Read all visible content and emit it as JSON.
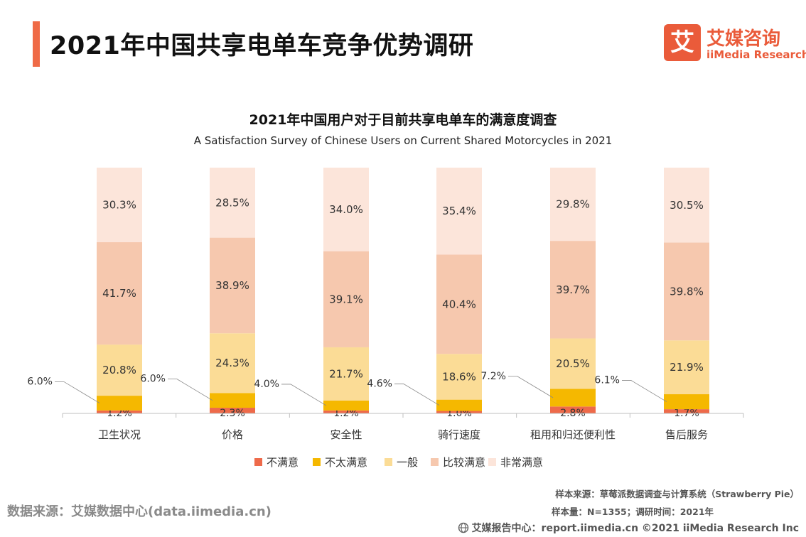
{
  "header": {
    "title": "2021年中国共享电单车竞争优势调研",
    "logo_mark": "艾",
    "logo_cn": "艾媒咨询",
    "logo_en": "iiMedia Research"
  },
  "footer": {
    "source": "数据来源：艾媒数据中心(data.iimedia.cn)",
    "sample_source": "样本来源：草莓派数据调查与计算系统（Strawberry Pie）",
    "sample_size": "样本量：N=1355；调研时间：2021年",
    "copyright": "艾媒报告中心：report.iimedia.cn  ©2021  iiMedia Research  Inc"
  },
  "chart_data": {
    "type": "bar",
    "stacked": true,
    "title": "2021年中国用户对于目前共享电单车的满意度调查",
    "subtitle": "A Satisfaction Survey of Chinese Users on Current Shared Motorcycles in 2021",
    "xlabel": "",
    "ylabel": "",
    "ylim": [
      0,
      100
    ],
    "grid": false,
    "legend_position": "bottom",
    "categories": [
      "卫生状况",
      "价格",
      "安全性",
      "骑行速度",
      "租用和归还便利性",
      "售后服务"
    ],
    "series": [
      {
        "name": "不满意",
        "color": "#ee6a4a",
        "values": [
          1.2,
          2.3,
          1.2,
          1.0,
          2.8,
          1.7
        ],
        "labels": [
          "1.2%",
          "2.3%",
          "1.2%",
          "1.0%",
          "2.8%",
          "1.7%"
        ]
      },
      {
        "name": "不太满意",
        "color": "#f5b800",
        "values": [
          6.0,
          6.0,
          4.0,
          4.6,
          7.2,
          6.1
        ],
        "labels": [
          "6.0%",
          "6.0%",
          "4.0%",
          "4.6%",
          "7.2%",
          "6.1%"
        ]
      },
      {
        "name": "一般",
        "color": "#fbdc96",
        "values": [
          20.8,
          24.3,
          21.7,
          18.6,
          20.5,
          21.9
        ],
        "labels": [
          "20.8%",
          "24.3%",
          "21.7%",
          "18.6%",
          "20.5%",
          "21.9%"
        ]
      },
      {
        "name": "比较满意",
        "color": "#f6c8ae",
        "values": [
          41.7,
          38.9,
          39.1,
          40.4,
          39.7,
          39.8
        ],
        "labels": [
          "41.7%",
          "38.9%",
          "39.1%",
          "40.4%",
          "39.7%",
          "39.8%"
        ]
      },
      {
        "name": "非常满意",
        "color": "#fce5da",
        "values": [
          30.3,
          28.5,
          34.0,
          35.4,
          29.8,
          30.5
        ],
        "labels": [
          "30.3%",
          "28.5%",
          "34.0%",
          "35.4%",
          "29.8%",
          "30.5%"
        ]
      }
    ]
  }
}
